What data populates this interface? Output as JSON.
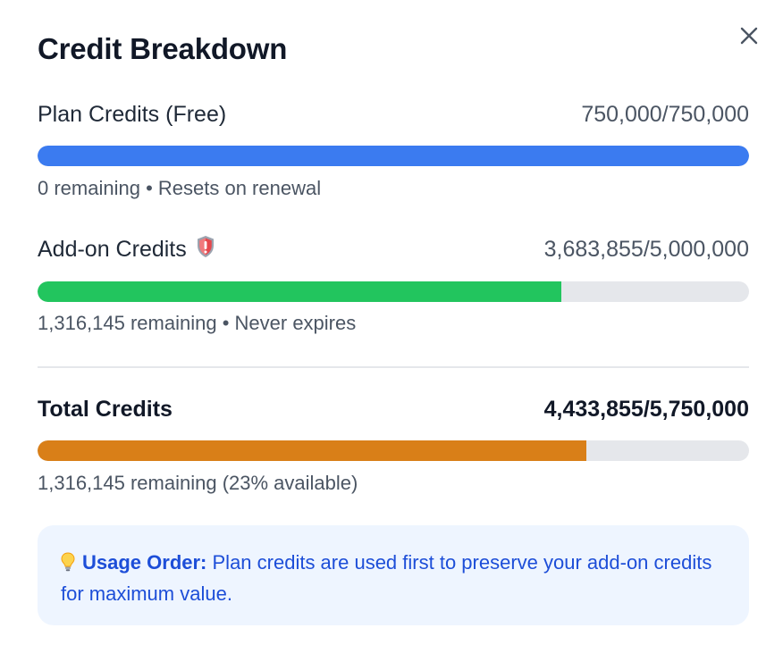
{
  "title": "Credit Breakdown",
  "close_icon": "close-icon",
  "plan": {
    "label": "Plan Credits (Free)",
    "value": "750,000/750,000",
    "fraction_used": 1.0,
    "bar_color": "#3b7bf0",
    "sub": "0 remaining • Resets on renewal"
  },
  "addon": {
    "label": "Add-on Credits",
    "icon": "shield-icon",
    "value": "3,683,855/5,000,000",
    "fraction_used": 0.7368,
    "bar_color": "#22c55e",
    "sub": "1,316,145 remaining • Never expires"
  },
  "total": {
    "label": "Total Credits",
    "value": "4,433,855/5,750,000",
    "fraction_used": 0.7711,
    "bar_color": "#d97f18",
    "sub": "1,316,145 remaining (23% available)"
  },
  "note": {
    "icon": "lightbulb-icon",
    "heading": "Usage Order:",
    "text": " Plan credits are used first to preserve your add-on credits for maximum value."
  }
}
